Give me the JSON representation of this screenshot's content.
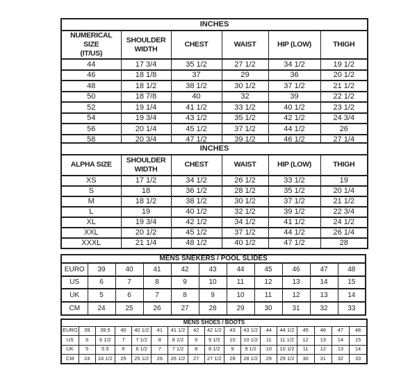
{
  "tables": {
    "numerical": {
      "title": "INCHES",
      "columns": [
        "NUMERICAL SIZE\n(IT/US)",
        "SHOULDER\nWIDTH",
        "CHEST",
        "WAIST",
        "HIP (LOW)",
        "THIGH"
      ],
      "rows": [
        [
          "44",
          "17 3/4",
          "35 1/2",
          "27 1/2",
          "34 1/2",
          "19 1/2"
        ],
        [
          "46",
          "18 1/8",
          "37",
          "29",
          "36",
          "20 1/2"
        ],
        [
          "48",
          "18 1/2",
          "38 1/2",
          "30 1/2",
          "37 1/2",
          "21 1/2"
        ],
        [
          "50",
          "18 7/8",
          "40",
          "32",
          "39",
          "22 1/2"
        ],
        [
          "52",
          "19 1/4",
          "41 1/2",
          "33 1/2",
          "40 1/2",
          "23 1/2"
        ],
        [
          "54",
          "19 3/4",
          "43 1/2",
          "35 1/2",
          "42 1/2",
          "24 3/4"
        ],
        [
          "56",
          "20 1/4",
          "45 1/2",
          "37 1/2",
          "44 1/2",
          "26"
        ],
        [
          "58",
          "20 3/4",
          "47 1/2",
          "39 1/2",
          "46 1/2",
          "27 1/4"
        ]
      ]
    },
    "alpha": {
      "title": "INCHES",
      "columns": [
        "ALPHA SIZE",
        "SHOULDER\nWIDTH",
        "CHEST",
        "WAIST",
        "HIP (LOW)",
        "THIGH"
      ],
      "rows": [
        [
          "XS",
          "17 1/2",
          "34 1/2",
          "26 1/2",
          "33 1/2",
          "19"
        ],
        [
          "S",
          "18",
          "36 1/2",
          "28 1/2",
          "35 1/2",
          "20 1/4"
        ],
        [
          "M",
          "18 1/2",
          "38 1/2",
          "30 1/2",
          "37 1/2",
          "21 1/2"
        ],
        [
          "L",
          "19",
          "40 1/2",
          "32 1/2",
          "39 1/2",
          "22 3/4"
        ],
        [
          "XL",
          "19 3/4",
          "42 1/2",
          "34 1/2",
          "41 1/2",
          "24 1/2"
        ],
        [
          "XXL",
          "20 1/2",
          "45 1/2",
          "37 1/2",
          "44 1/2",
          "26 1/4"
        ],
        [
          "XXXL",
          "21 1/4",
          "48 1/2",
          "40 1/2",
          "47 1/2",
          "28"
        ]
      ]
    },
    "sneakers": {
      "title": "MENS SNEKERS / POOL SLIDES",
      "rows": [
        [
          "EURO",
          "39",
          "40",
          "41",
          "42",
          "43",
          "44",
          "45",
          "46",
          "47",
          "48"
        ],
        [
          "US",
          "6",
          "7",
          "8",
          "9",
          "10",
          "11",
          "12",
          "13",
          "14",
          "15"
        ],
        [
          "UK",
          "5",
          "6",
          "7",
          "8",
          "9",
          "10",
          "11",
          "12",
          "13",
          "14"
        ],
        [
          "CM",
          "24",
          "25",
          "26",
          "27",
          "28",
          "29",
          "30",
          "31",
          "32",
          "33"
        ]
      ]
    },
    "shoes": {
      "title": "MENS SHOES / BOOTS",
      "rows": [
        [
          "EURO",
          "39",
          "39.5",
          "40",
          "40 1/2",
          "41",
          "41 1/2",
          "42",
          "42 1/2",
          "43",
          "43 1/2",
          "44",
          "44 1/2",
          "45",
          "46",
          "47",
          "48"
        ],
        [
          "US",
          "6",
          "6 1/2",
          "7",
          "7 1/2",
          "8",
          "8 1/2",
          "9",
          "9 1/2",
          "10",
          "10 1/2",
          "11",
          "11 1/2",
          "12",
          "13",
          "14",
          "15"
        ],
        [
          "UK",
          "5",
          "5.5",
          "6",
          "6 1/2",
          "7",
          "7 1/2",
          "8",
          "8 1/2",
          "9",
          "9 1/2",
          "10",
          "10 1/2",
          "11",
          "12",
          "13",
          "14"
        ],
        [
          "CM",
          "24",
          "24 1/2",
          "25",
          "25 1/2",
          "26",
          "26 1/2",
          "27",
          "27 1/2",
          "28",
          "28 1/2",
          "29",
          "29 1/2",
          "30",
          "31",
          "32",
          "33"
        ]
      ]
    }
  }
}
